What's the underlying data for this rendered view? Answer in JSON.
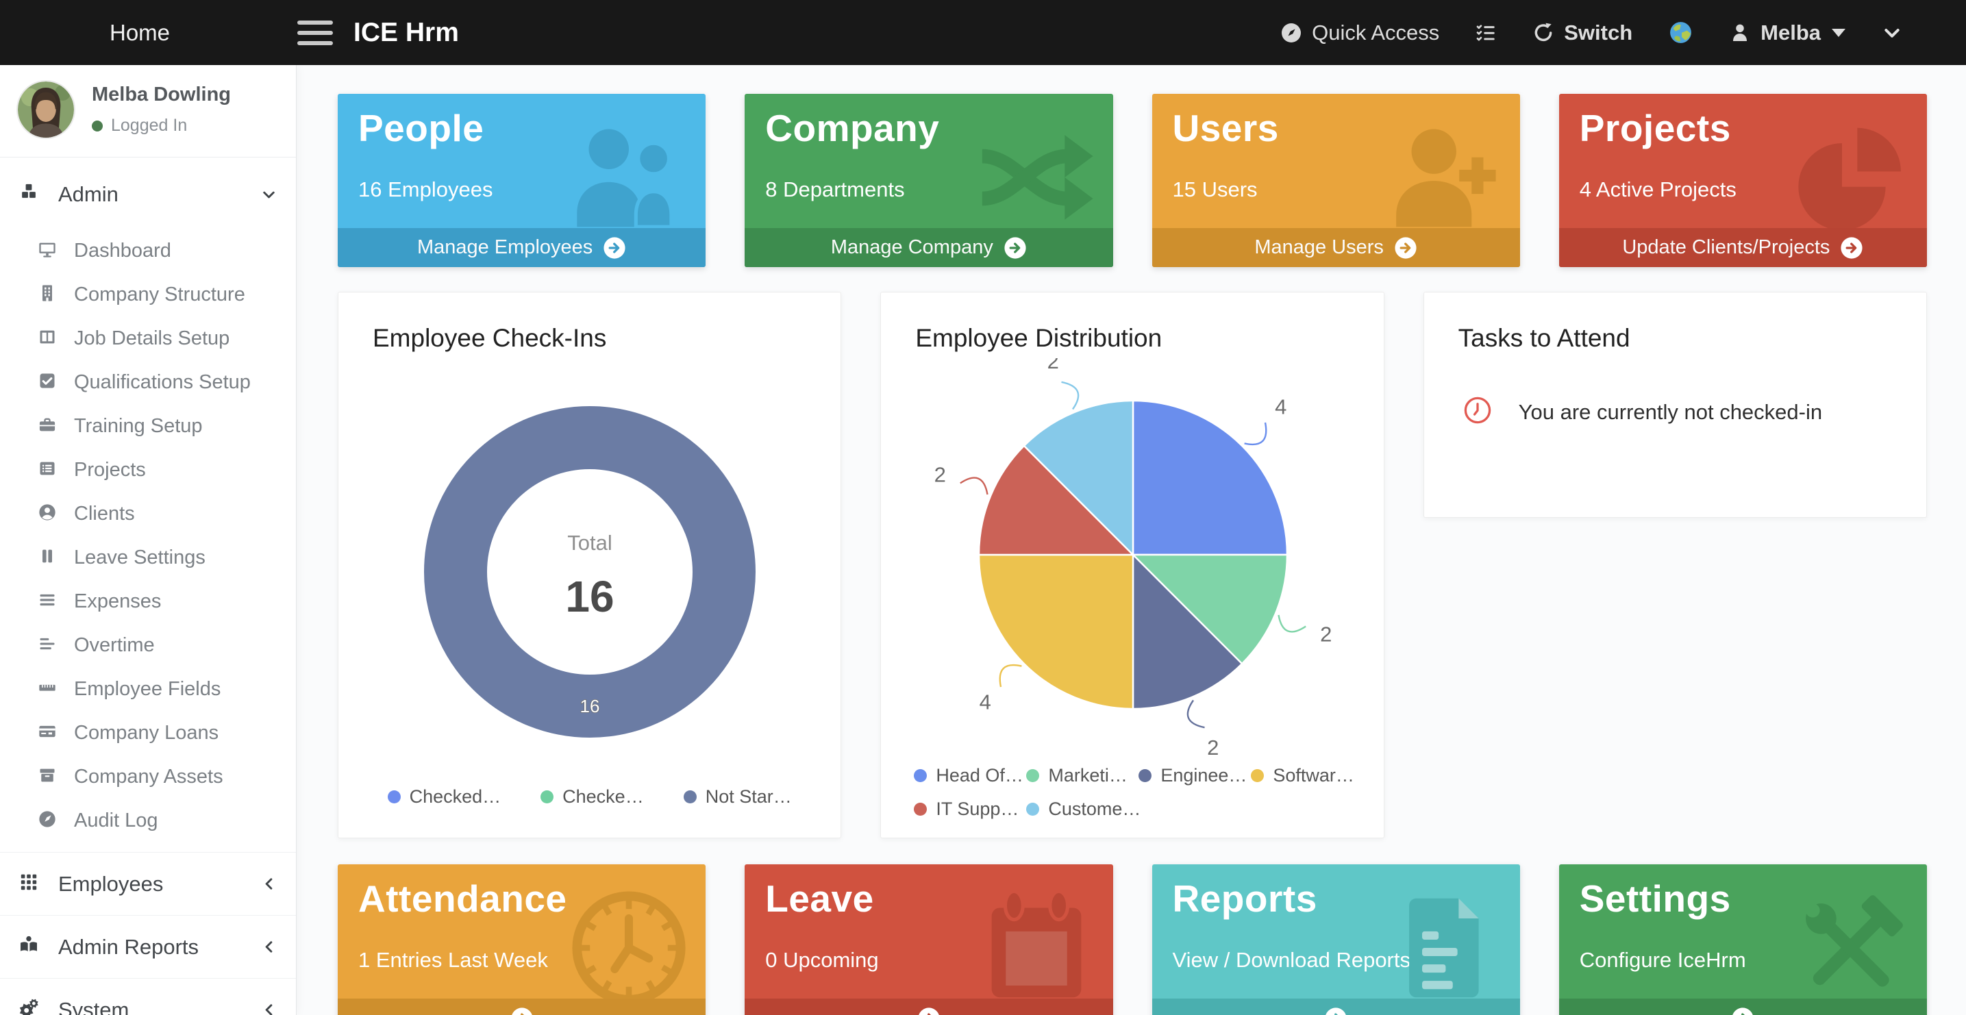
{
  "navbar": {
    "home_label": "Home",
    "brand": "ICE Hrm",
    "quick_access_label": "Quick Access",
    "switch_label": "Switch",
    "user_name": "Melba"
  },
  "sidebar": {
    "profile": {
      "name": "Melba Dowling",
      "status": "Logged In",
      "status_color": "#4C7D4F"
    },
    "admin": {
      "label": "Admin",
      "icon": "cubes-icon",
      "items": [
        {
          "label": "Dashboard",
          "icon": "monitor-icon"
        },
        {
          "label": "Company Structure",
          "icon": "building-icon"
        },
        {
          "label": "Job Details Setup",
          "icon": "columns-icon"
        },
        {
          "label": "Qualifications Setup",
          "icon": "check-square-icon"
        },
        {
          "label": "Training Setup",
          "icon": "briefcase-icon"
        },
        {
          "label": "Projects",
          "icon": "list-icon"
        },
        {
          "label": "Clients",
          "icon": "user-circle-icon"
        },
        {
          "label": "Leave Settings",
          "icon": "pause-icon"
        },
        {
          "label": "Expenses",
          "icon": "bars-icon"
        },
        {
          "label": "Overtime",
          "icon": "align-left-icon"
        },
        {
          "label": "Employee Fields",
          "icon": "ruler-icon"
        },
        {
          "label": "Company Loans",
          "icon": "credit-card-icon"
        },
        {
          "label": "Company Assets",
          "icon": "archive-icon"
        },
        {
          "label": "Audit Log",
          "icon": "compass-icon"
        }
      ]
    },
    "sections": [
      {
        "label": "Employees",
        "icon": "grid-icon"
      },
      {
        "label": "Admin Reports",
        "icon": "book-reader-icon"
      },
      {
        "label": "System",
        "icon": "gears-icon"
      }
    ]
  },
  "summary_cards": [
    {
      "name": "people",
      "title": "People",
      "subtitle": "16 Employees",
      "action": "Manage Employees",
      "icon": "people-icon",
      "bg": "#4EBAE8",
      "deco": "#3FA3CE",
      "footer": "#3C9DC8"
    },
    {
      "name": "company",
      "title": "Company",
      "subtitle": "8 Departments",
      "action": "Manage Company",
      "icon": "shuffle-icon",
      "bg": "#4AA35C",
      "deco": "#3E9150",
      "footer": "#3D8C4E"
    },
    {
      "name": "users",
      "title": "Users",
      "subtitle": "15 Users",
      "action": "Manage Users",
      "icon": "user-plus-icon",
      "bg": "#E9A43C",
      "deco": "#D1922E",
      "footer": "#CE8F2D"
    },
    {
      "name": "projects",
      "title": "Projects",
      "subtitle": "4 Active Projects",
      "action": "Update Clients/Projects",
      "icon": "pie-chart-icon",
      "bg": "#D0523F",
      "deco": "#BA4634",
      "footer": "#B84433"
    }
  ],
  "bottom_cards": [
    {
      "name": "attendance",
      "title": "Attendance",
      "subtitle": "1 Entries Last Week",
      "action": "",
      "icon": "clock-icon",
      "bg": "#E9A43C",
      "deco": "#D1922E",
      "footer": "#CE8F2D"
    },
    {
      "name": "leave",
      "title": "Leave",
      "subtitle": "0 Upcoming",
      "action": "",
      "icon": "calendar-icon",
      "bg": "#D0523F",
      "deco": "#BA4634",
      "footer": "#B84433"
    },
    {
      "name": "reports",
      "title": "Reports",
      "subtitle": "View / Download Reports",
      "action": "",
      "icon": "file-icon",
      "bg": "#5FC7C7",
      "deco": "#4BB2B2",
      "footer": "#4AAFAF"
    },
    {
      "name": "settings",
      "title": "Settings",
      "subtitle": "Configure IceHrm",
      "action": "",
      "icon": "tools-icon",
      "bg": "#4AA35C",
      "deco": "#3E9150",
      "footer": "#3D8C4E"
    }
  ],
  "tasks_card": {
    "title": "Tasks to Attend",
    "message": "You are currently not checked-in",
    "icon": "alarm-clock-icon",
    "icon_color": "#E25A52"
  },
  "chart_data": [
    {
      "type": "donut",
      "title": "Employee Check-Ins",
      "center_label": "Total",
      "center_value": "16",
      "legend_position": "bottom",
      "series": [
        {
          "name": "Checked…",
          "value": 0,
          "color": "#6D8CEE",
          "data_label": "0"
        },
        {
          "name": "Checke…",
          "value": 0,
          "color": "#6FCF9F",
          "data_label": "0"
        },
        {
          "name": "Not Star…",
          "value": 16,
          "color": "#6B7CA4",
          "data_label": "16"
        }
      ]
    },
    {
      "type": "pie",
      "title": "Employee Distribution",
      "legend_position": "bottom",
      "series": [
        {
          "name": "Head Of…",
          "value": 4,
          "color": "#6A8EED"
        },
        {
          "name": "Marketi…",
          "value": 2,
          "color": "#7FD4A8"
        },
        {
          "name": "Enginee…",
          "value": 2,
          "color": "#64719B"
        },
        {
          "name": "Softwar…",
          "value": 4,
          "color": "#ECC24E"
        },
        {
          "name": "IT Supp…",
          "value": 2,
          "color": "#CB6257"
        },
        {
          "name": "Custome…",
          "value": 2,
          "color": "#86C9E9"
        }
      ]
    }
  ]
}
